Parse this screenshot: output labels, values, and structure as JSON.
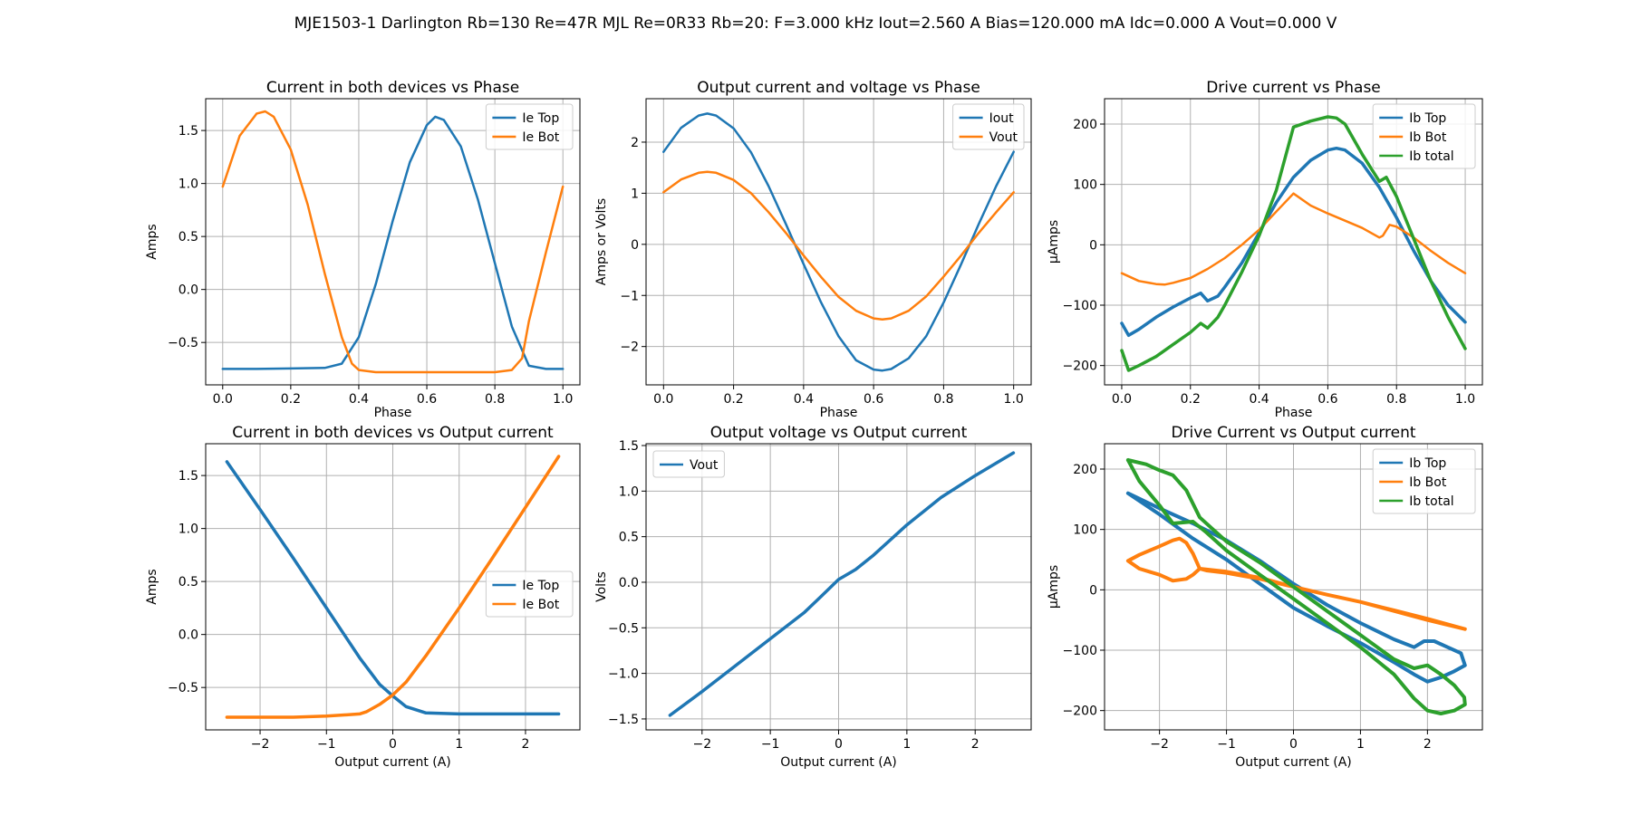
{
  "suptitle": "MJE1503-1 Darlington Rb=130 Re=47R MJL Re=0R33 Rb=20: F=3.000 kHz Iout=2.560 A Bias=120.000 mA Idc=0.000 A Vout=0.000 V",
  "colors": {
    "blue": "#1f77b4",
    "orange": "#ff7f0e",
    "green": "#2ca02c",
    "grid": "#b0b0b0"
  },
  "chart_data": [
    {
      "type": "line",
      "title": "Current in both devices vs Phase",
      "xlabel": "Phase",
      "ylabel": "Amps",
      "xlim": [
        -0.05,
        1.05
      ],
      "ylim": [
        -0.9,
        1.8
      ],
      "xticks": [
        0.0,
        0.2,
        0.4,
        0.6,
        0.8,
        1.0
      ],
      "xticklabels": [
        "0.0",
        "0.2",
        "0.4",
        "0.6",
        "0.8",
        "1.0"
      ],
      "yticks": [
        -0.5,
        0.0,
        0.5,
        1.0,
        1.5
      ],
      "yticklabels": [
        "−0.5",
        "0.0",
        "0.5",
        "1.0",
        "1.5"
      ],
      "grid": true,
      "legend": "upper right",
      "series": [
        {
          "name": "Ie Top",
          "color": "#1f77b4",
          "width": 2.5,
          "x": [
            0.0,
            0.1,
            0.2,
            0.3,
            0.35,
            0.4,
            0.45,
            0.5,
            0.55,
            0.6,
            0.625,
            0.65,
            0.7,
            0.75,
            0.8,
            0.85,
            0.9,
            0.95,
            1.0
          ],
          "y": [
            -0.75,
            -0.75,
            -0.745,
            -0.74,
            -0.7,
            -0.45,
            0.05,
            0.65,
            1.2,
            1.55,
            1.63,
            1.6,
            1.35,
            0.85,
            0.25,
            -0.35,
            -0.72,
            -0.75,
            -0.75
          ]
        },
        {
          "name": "Ie Bot",
          "color": "#ff7f0e",
          "width": 2.5,
          "x": [
            0.0,
            0.05,
            0.1,
            0.125,
            0.15,
            0.2,
            0.25,
            0.3,
            0.35,
            0.38,
            0.4,
            0.45,
            0.5,
            0.6,
            0.7,
            0.8,
            0.85,
            0.88,
            0.9,
            0.95,
            1.0
          ],
          "y": [
            0.97,
            1.45,
            1.66,
            1.68,
            1.63,
            1.32,
            0.8,
            0.15,
            -0.45,
            -0.7,
            -0.76,
            -0.78,
            -0.78,
            -0.78,
            -0.78,
            -0.78,
            -0.76,
            -0.65,
            -0.3,
            0.35,
            0.97
          ]
        }
      ]
    },
    {
      "type": "line",
      "title": "Output current and voltage vs Phase",
      "xlabel": "Phase",
      "ylabel": "Amps or Volts",
      "xlim": [
        -0.05,
        1.05
      ],
      "ylim": [
        -2.75,
        2.85
      ],
      "xticks": [
        0.0,
        0.2,
        0.4,
        0.6,
        0.8,
        1.0
      ],
      "xticklabels": [
        "0.0",
        "0.2",
        "0.4",
        "0.6",
        "0.8",
        "1.0"
      ],
      "yticks": [
        -2,
        -1,
        0,
        1,
        2
      ],
      "yticklabels": [
        "−2",
        "−1",
        "0",
        "1",
        "2"
      ],
      "grid": true,
      "legend": "upper right",
      "series": [
        {
          "name": "Iout",
          "color": "#1f77b4",
          "width": 2.5,
          "x": [
            0.0,
            0.05,
            0.1,
            0.125,
            0.15,
            0.2,
            0.25,
            0.3,
            0.35,
            0.4,
            0.45,
            0.5,
            0.55,
            0.6,
            0.625,
            0.65,
            0.7,
            0.75,
            0.8,
            0.85,
            0.9,
            0.95,
            1.0
          ],
          "y": [
            1.81,
            2.28,
            2.52,
            2.56,
            2.52,
            2.27,
            1.8,
            1.14,
            0.39,
            -0.39,
            -1.14,
            -1.8,
            -2.27,
            -2.45,
            -2.47,
            -2.44,
            -2.23,
            -1.8,
            -1.14,
            -0.39,
            0.39,
            1.14,
            1.81
          ]
        },
        {
          "name": "Vout",
          "color": "#ff7f0e",
          "width": 2.5,
          "x": [
            0.0,
            0.05,
            0.1,
            0.125,
            0.15,
            0.2,
            0.25,
            0.3,
            0.35,
            0.4,
            0.45,
            0.5,
            0.55,
            0.6,
            0.625,
            0.65,
            0.7,
            0.75,
            0.8,
            0.85,
            0.9,
            0.95,
            1.0
          ],
          "y": [
            1.02,
            1.27,
            1.4,
            1.42,
            1.4,
            1.26,
            1.0,
            0.63,
            0.22,
            -0.22,
            -0.64,
            -1.03,
            -1.3,
            -1.45,
            -1.47,
            -1.45,
            -1.3,
            -1.02,
            -0.63,
            -0.22,
            0.22,
            0.63,
            1.02
          ]
        }
      ]
    },
    {
      "type": "line",
      "title": "Drive current vs Phase",
      "xlabel": "Phase",
      "ylabel": "µAmps",
      "xlim": [
        -0.05,
        1.05
      ],
      "ylim": [
        -232,
        242
      ],
      "xticks": [
        0.0,
        0.2,
        0.4,
        0.6,
        0.8,
        1.0
      ],
      "xticklabels": [
        "0.0",
        "0.2",
        "0.4",
        "0.6",
        "0.8",
        "1.0"
      ],
      "yticks": [
        -200,
        -100,
        0,
        100,
        200
      ],
      "yticklabels": [
        "−200",
        "−100",
        "0",
        "100",
        "200"
      ],
      "grid": true,
      "legend": "upper right",
      "series": [
        {
          "name": "Ib Top",
          "color": "#1f77b4",
          "width": 3.5,
          "x": [
            0.0,
            0.02,
            0.05,
            0.1,
            0.15,
            0.2,
            0.23,
            0.25,
            0.28,
            0.3,
            0.35,
            0.4,
            0.45,
            0.5,
            0.55,
            0.6,
            0.625,
            0.65,
            0.7,
            0.75,
            0.8,
            0.85,
            0.9,
            0.95,
            1.0
          ],
          "y": [
            -130,
            -150,
            -140,
            -120,
            -103,
            -88,
            -80,
            -93,
            -85,
            -70,
            -30,
            20,
            70,
            112,
            140,
            157,
            160,
            157,
            135,
            95,
            45,
            -10,
            -60,
            -100,
            -128
          ]
        },
        {
          "name": "Ib Bot",
          "color": "#ff7f0e",
          "width": 2.5,
          "x": [
            0.0,
            0.05,
            0.1,
            0.125,
            0.15,
            0.2,
            0.25,
            0.3,
            0.35,
            0.4,
            0.45,
            0.5,
            0.55,
            0.6,
            0.65,
            0.7,
            0.75,
            0.76,
            0.78,
            0.8,
            0.85,
            0.9,
            0.95,
            1.0
          ],
          "y": [
            -47,
            -60,
            -65,
            -66,
            -63,
            -55,
            -40,
            -22,
            0,
            25,
            55,
            85,
            65,
            52,
            40,
            28,
            12,
            15,
            33,
            30,
            12,
            -10,
            -30,
            -47
          ]
        },
        {
          "name": "Ib total",
          "color": "#2ca02c",
          "width": 3.5,
          "x": [
            0.0,
            0.02,
            0.05,
            0.1,
            0.15,
            0.2,
            0.23,
            0.25,
            0.28,
            0.3,
            0.35,
            0.4,
            0.45,
            0.5,
            0.55,
            0.6,
            0.625,
            0.65,
            0.7,
            0.75,
            0.77,
            0.8,
            0.85,
            0.9,
            0.95,
            1.0
          ],
          "y": [
            -175,
            -208,
            -200,
            -185,
            -165,
            -145,
            -130,
            -138,
            -120,
            -100,
            -45,
            15,
            90,
            195,
            205,
            212,
            210,
            200,
            150,
            105,
            112,
            80,
            10,
            -60,
            -120,
            -172
          ]
        }
      ]
    },
    {
      "type": "line",
      "title": "Current in both devices vs Output current",
      "xlabel": "Output current (A)",
      "ylabel": "Amps",
      "xlim": [
        -2.82,
        2.82
      ],
      "ylim": [
        -0.9,
        1.8
      ],
      "xticks": [
        -2,
        -1,
        0,
        1,
        2
      ],
      "xticklabels": [
        "−2",
        "−1",
        "0",
        "1",
        "2"
      ],
      "yticks": [
        -0.5,
        0.0,
        0.5,
        1.0,
        1.5
      ],
      "yticklabels": [
        "−0.5",
        "0.0",
        "0.5",
        "1.0",
        "1.5"
      ],
      "grid": true,
      "legend": "center right",
      "series": [
        {
          "name": "Ie Top",
          "color": "#1f77b4",
          "width": 3.5,
          "x": [
            -2.5,
            -2.0,
            -1.5,
            -1.0,
            -0.5,
            -0.2,
            0.0,
            0.2,
            0.5,
            1.0,
            1.5,
            2.0,
            2.5
          ],
          "y": [
            1.63,
            1.18,
            0.72,
            0.25,
            -0.22,
            -0.47,
            -0.58,
            -0.68,
            -0.74,
            -0.75,
            -0.75,
            -0.75,
            -0.75
          ]
        },
        {
          "name": "Ie Bot",
          "color": "#ff7f0e",
          "width": 3.5,
          "x": [
            -2.5,
            -2.0,
            -1.5,
            -1.0,
            -0.5,
            -0.4,
            -0.2,
            0.0,
            0.2,
            0.5,
            1.0,
            1.5,
            2.0,
            2.5
          ],
          "y": [
            -0.78,
            -0.78,
            -0.78,
            -0.77,
            -0.75,
            -0.73,
            -0.66,
            -0.57,
            -0.45,
            -0.2,
            0.25,
            0.72,
            1.2,
            1.68
          ]
        }
      ]
    },
    {
      "type": "line",
      "title": "Output voltage vs Output current",
      "xlabel": "Output current (A)",
      "ylabel": "Volts",
      "xlim": [
        -2.82,
        2.82
      ],
      "ylim": [
        -1.62,
        1.52
      ],
      "xticks": [
        -2,
        -1,
        0,
        1,
        2
      ],
      "xticklabels": [
        "−2",
        "−1",
        "0",
        "1",
        "2"
      ],
      "yticks": [
        -1.5,
        -1.0,
        -0.5,
        0.0,
        0.5,
        1.0,
        1.5
      ],
      "yticklabels": [
        "−1.5",
        "−1.0",
        "−0.5",
        "0.0",
        "0.5",
        "1.0",
        "1.5"
      ],
      "grid": true,
      "legend": "upper left",
      "series": [
        {
          "name": "Vout",
          "color": "#1f77b4",
          "width": 3.5,
          "x": [
            -2.47,
            -2.0,
            -1.5,
            -1.0,
            -0.5,
            -0.25,
            0.0,
            0.25,
            0.5,
            1.0,
            1.5,
            2.0,
            2.56
          ],
          "y": [
            -1.46,
            -1.2,
            -0.91,
            -0.62,
            -0.33,
            -0.15,
            0.03,
            0.14,
            0.29,
            0.63,
            0.93,
            1.17,
            1.42
          ]
        }
      ]
    },
    {
      "type": "line",
      "title": "Drive Current vs Output current",
      "xlabel": "Output current (A)",
      "ylabel": "µAmps",
      "xlim": [
        -2.82,
        2.82
      ],
      "ylim": [
        -232,
        242
      ],
      "xticks": [
        -2,
        -1,
        0,
        1,
        2
      ],
      "xticklabels": [
        "−2",
        "−1",
        "0",
        "1",
        "2"
      ],
      "yticks": [
        -200,
        -100,
        0,
        100,
        200
      ],
      "yticklabels": [
        "−200",
        "−100",
        "0",
        "100",
        "200"
      ],
      "grid": true,
      "legend": "upper right",
      "series": [
        {
          "name": "Ib Top",
          "color": "#1f77b4",
          "width": 4,
          "x": [
            -2.47,
            -2.0,
            -1.5,
            -1.0,
            -0.5,
            0.0,
            0.5,
            1.0,
            1.5,
            1.8,
            1.95,
            2.1,
            2.3,
            2.5,
            2.56,
            2.4,
            2.2,
            2.0,
            1.8,
            1.5,
            1.0,
            0.5,
            0.0,
            -0.5,
            -1.0,
            -1.5,
            -2.0,
            -2.47
          ],
          "y": [
            160,
            135,
            110,
            82,
            48,
            10,
            -25,
            -55,
            -82,
            -95,
            -85,
            -85,
            -95,
            -105,
            -125,
            -135,
            -145,
            -152,
            -140,
            -120,
            -88,
            -60,
            -30,
            10,
            50,
            85,
            125,
            160
          ]
        },
        {
          "name": "Ib Bot",
          "color": "#ff7f0e",
          "width": 4,
          "x": [
            -2.47,
            -2.3,
            -2.0,
            -1.8,
            -1.7,
            -1.6,
            -1.5,
            -1.4,
            -1.3,
            -1.0,
            -0.5,
            0.0,
            0.5,
            1.0,
            1.5,
            2.0,
            2.56,
            2.0,
            1.5,
            1.0,
            0.5,
            0.0,
            -0.5,
            -1.0,
            -1.4,
            -1.5,
            -1.6,
            -1.8,
            -2.0,
            -2.3,
            -2.47
          ],
          "y": [
            48,
            58,
            72,
            82,
            85,
            78,
            60,
            35,
            32,
            28,
            18,
            5,
            -8,
            -20,
            -35,
            -50,
            -65,
            -48,
            -34,
            -20,
            -8,
            5,
            20,
            30,
            35,
            25,
            18,
            15,
            25,
            35,
            48
          ]
        },
        {
          "name": "Ib total",
          "color": "#2ca02c",
          "width": 4,
          "x": [
            -2.47,
            -2.2,
            -2.0,
            -1.8,
            -1.6,
            -1.4,
            -1.2,
            -1.0,
            -0.5,
            0.0,
            0.5,
            1.0,
            1.5,
            1.8,
            2.0,
            2.2,
            2.4,
            2.55,
            2.56,
            2.4,
            2.2,
            2.0,
            1.8,
            1.5,
            1.0,
            0.5,
            0.0,
            -0.5,
            -1.0,
            -1.3,
            -1.5,
            -1.8,
            -2.0,
            -2.3,
            -2.47
          ],
          "y": [
            215,
            208,
            198,
            190,
            165,
            120,
            100,
            80,
            45,
            5,
            -35,
            -75,
            -115,
            -130,
            -125,
            -140,
            -158,
            -178,
            -190,
            -200,
            -205,
            -200,
            -180,
            -140,
            -95,
            -55,
            -15,
            25,
            65,
            95,
            113,
            110,
            140,
            180,
            215
          ]
        }
      ]
    }
  ]
}
